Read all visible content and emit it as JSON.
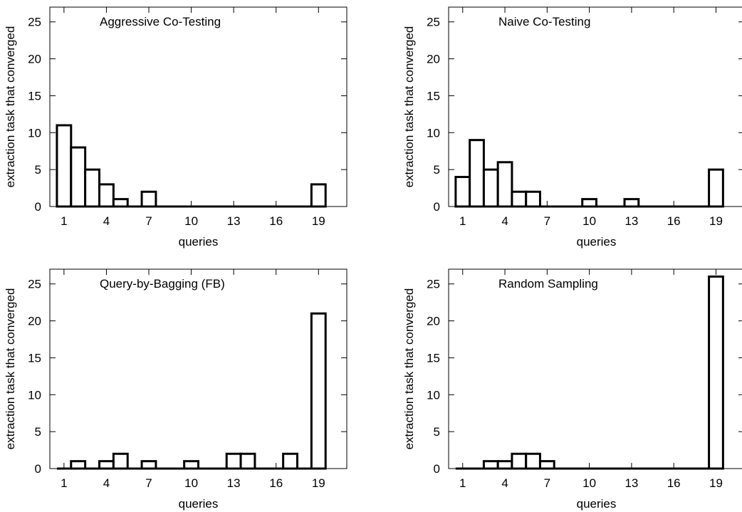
{
  "chart_data": [
    {
      "type": "bar",
      "title": "Aggressive Co-Testing",
      "xlabel": "queries",
      "ylabel": "extraction task that converged",
      "categories": [
        1,
        2,
        3,
        4,
        5,
        6,
        7,
        8,
        9,
        10,
        11,
        12,
        13,
        14,
        15,
        16,
        17,
        18,
        19
      ],
      "values": [
        11,
        8,
        5,
        3,
        1,
        0,
        2,
        0,
        0,
        0,
        0,
        0,
        0,
        0,
        0,
        0,
        0,
        0,
        3
      ],
      "xticks": [
        1,
        4,
        7,
        10,
        13,
        16,
        19
      ],
      "yticks": [
        0,
        5,
        10,
        15,
        20,
        25
      ],
      "xlim": [
        0,
        21
      ],
      "ylim": [
        0,
        27
      ],
      "grid": false
    },
    {
      "type": "bar",
      "title": "Naive Co-Testing",
      "xlabel": "queries",
      "ylabel": "extraction task that converged",
      "categories": [
        1,
        2,
        3,
        4,
        5,
        6,
        7,
        8,
        9,
        10,
        11,
        12,
        13,
        14,
        15,
        16,
        17,
        18,
        19
      ],
      "values": [
        4,
        9,
        5,
        6,
        2,
        2,
        0,
        0,
        0,
        1,
        0,
        0,
        1,
        0,
        0,
        0,
        0,
        0,
        5
      ],
      "xticks": [
        1,
        4,
        7,
        10,
        13,
        16,
        19
      ],
      "yticks": [
        0,
        5,
        10,
        15,
        20,
        25
      ],
      "xlim": [
        0,
        21
      ],
      "ylim": [
        0,
        27
      ],
      "grid": false
    },
    {
      "type": "bar",
      "title": "Query-by-Bagging (FB)",
      "xlabel": "queries",
      "ylabel": "extraction task that converged",
      "categories": [
        1,
        2,
        3,
        4,
        5,
        6,
        7,
        8,
        9,
        10,
        11,
        12,
        13,
        14,
        15,
        16,
        17,
        18,
        19
      ],
      "values": [
        0,
        1,
        0,
        1,
        2,
        0,
        1,
        0,
        0,
        1,
        0,
        0,
        2,
        2,
        0,
        0,
        2,
        0,
        21
      ],
      "xticks": [
        1,
        4,
        7,
        10,
        13,
        16,
        19
      ],
      "yticks": [
        0,
        5,
        10,
        15,
        20,
        25
      ],
      "xlim": [
        0,
        21
      ],
      "ylim": [
        0,
        27
      ],
      "grid": false
    },
    {
      "type": "bar",
      "title": "Random Sampling",
      "xlabel": "queries",
      "ylabel": "extraction task that converged",
      "categories": [
        1,
        2,
        3,
        4,
        5,
        6,
        7,
        8,
        9,
        10,
        11,
        12,
        13,
        14,
        15,
        16,
        17,
        18,
        19
      ],
      "values": [
        0,
        0,
        1,
        1,
        2,
        2,
        1,
        0,
        0,
        0,
        0,
        0,
        0,
        0,
        0,
        0,
        0,
        0,
        26
      ],
      "xticks": [
        1,
        4,
        7,
        10,
        13,
        16,
        19
      ],
      "yticks": [
        0,
        5,
        10,
        15,
        20,
        25
      ],
      "xlim": [
        0,
        21
      ],
      "ylim": [
        0,
        27
      ],
      "grid": false
    }
  ]
}
